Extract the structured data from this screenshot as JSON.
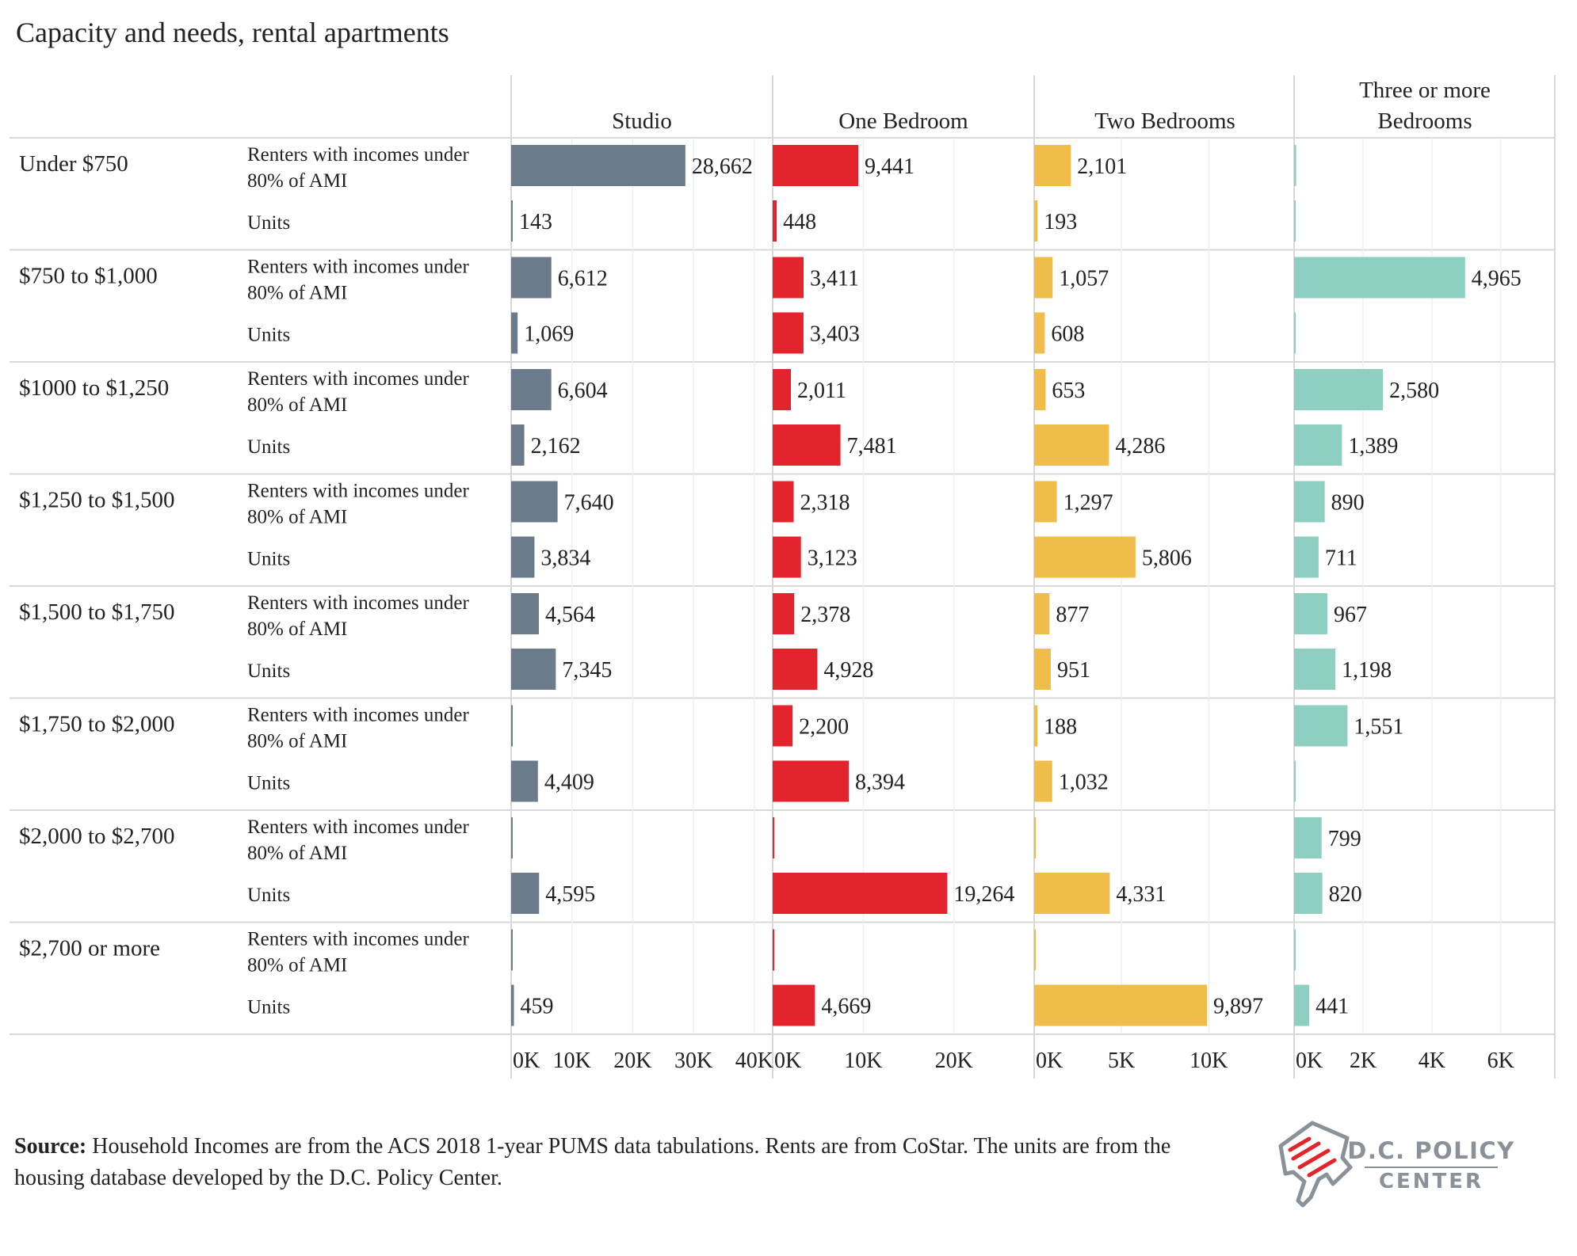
{
  "chart_data": {
    "type": "bar",
    "orientation": "horizontal",
    "title": "Capacity and needs, rental apartments",
    "columns": [
      {
        "label_lines": [
          "Studio"
        ],
        "ticks": [
          0,
          10000,
          20000,
          30000,
          40000
        ],
        "tick_labels": [
          "0K",
          "10K",
          "20K",
          "30K",
          "40K"
        ],
        "xlim": [
          0,
          42500
        ],
        "color": "#6B7B8C"
      },
      {
        "label_lines": [
          "One Bedroom"
        ],
        "ticks": [
          0,
          10000,
          20000
        ],
        "tick_labels": [
          "0K",
          "10K",
          "20K"
        ],
        "xlim": [
          0,
          28500
        ],
        "color": "#E4242C"
      },
      {
        "label_lines": [
          "Two Bedrooms"
        ],
        "ticks": [
          0,
          5000,
          10000
        ],
        "tick_labels": [
          "0K",
          "5K",
          "10K"
        ],
        "xlim": [
          0,
          14800
        ],
        "color": "#F0BC4A"
      },
      {
        "label_lines": [
          "Three or more",
          "Bedrooms"
        ],
        "ticks": [
          0,
          2000,
          4000,
          6000
        ],
        "tick_labels": [
          "0K",
          "2K",
          "4K",
          "6K"
        ],
        "xlim": [
          0,
          7500
        ],
        "color": "#8ECFC2"
      }
    ],
    "measures": [
      {
        "label_lines": [
          "Renters with incomes under",
          "80% of AMI"
        ]
      },
      {
        "label_lines": [
          "Units"
        ]
      }
    ],
    "rent_groups": [
      {
        "label": "Under $750",
        "values": [
          [
            28662,
            143
          ],
          [
            9441,
            448
          ],
          [
            2101,
            193
          ],
          [
            60,
            30
          ]
        ],
        "labels": [
          [
            "28,662",
            "143"
          ],
          [
            "9,441",
            "448"
          ],
          [
            "2,101",
            "193"
          ],
          [
            "",
            ""
          ]
        ]
      },
      {
        "label": "$750 to $1,000",
        "values": [
          [
            6612,
            1069
          ],
          [
            3411,
            3403
          ],
          [
            1057,
            608
          ],
          [
            4965,
            30
          ]
        ],
        "labels": [
          [
            "6,612",
            "1,069"
          ],
          [
            "3,411",
            "3,403"
          ],
          [
            "1,057",
            "608"
          ],
          [
            "4,965",
            ""
          ]
        ]
      },
      {
        "label": "$1000 to $1,250",
        "values": [
          [
            6604,
            2162
          ],
          [
            2011,
            7481
          ],
          [
            653,
            4286
          ],
          [
            2580,
            1389
          ]
        ],
        "labels": [
          [
            "6,604",
            "2,162"
          ],
          [
            "2,011",
            "7,481"
          ],
          [
            "653",
            "4,286"
          ],
          [
            "2,580",
            "1,389"
          ]
        ]
      },
      {
        "label": "$1,250 to $1,500",
        "values": [
          [
            7640,
            3834
          ],
          [
            2318,
            3123
          ],
          [
            1297,
            5806
          ],
          [
            890,
            711
          ]
        ],
        "labels": [
          [
            "7,640",
            "3,834"
          ],
          [
            "2,318",
            "3,123"
          ],
          [
            "1,297",
            "5,806"
          ],
          [
            "890",
            "711"
          ]
        ]
      },
      {
        "label": "$1,500 to $1,750",
        "values": [
          [
            4564,
            7345
          ],
          [
            2378,
            4928
          ],
          [
            877,
            951
          ],
          [
            967,
            1198
          ]
        ],
        "labels": [
          [
            "4,564",
            "7,345"
          ],
          [
            "2,378",
            "4,928"
          ],
          [
            "877",
            "951"
          ],
          [
            "967",
            "1,198"
          ]
        ]
      },
      {
        "label": "$1,750 to $2,000",
        "values": [
          [
            150,
            4409
          ],
          [
            2200,
            8394
          ],
          [
            188,
            1032
          ],
          [
            1551,
            30
          ]
        ],
        "labels": [
          [
            "",
            "4,409"
          ],
          [
            "2,200",
            "8,394"
          ],
          [
            "188",
            "1,032"
          ],
          [
            "1,551",
            ""
          ]
        ]
      },
      {
        "label": "$2,000 to $2,700",
        "values": [
          [
            150,
            4595
          ],
          [
            100,
            19264
          ],
          [
            50,
            4331
          ],
          [
            799,
            820
          ]
        ],
        "labels": [
          [
            "",
            "4,595"
          ],
          [
            "",
            "19,264"
          ],
          [
            "",
            "4,331"
          ],
          [
            "799",
            "820"
          ]
        ]
      },
      {
        "label": "$2,700 or more",
        "values": [
          [
            150,
            459
          ],
          [
            100,
            4669
          ],
          [
            50,
            9897
          ],
          [
            30,
            441
          ]
        ],
        "labels": [
          [
            "",
            "459"
          ],
          [
            "",
            "4,669"
          ],
          [
            "",
            "9,897"
          ],
          [
            "",
            "441"
          ]
        ]
      }
    ]
  },
  "footer": {
    "source_label": "Source:",
    "source_text": " Household Incomes are from the ACS 2018 1-year PUMS data tabulations. Rents are from CoStar. The units are from the housing database developed by the D.C. Policy Center."
  },
  "logo": {
    "line1": "D.C. POLICY",
    "line2": "CENTER",
    "colors": {
      "gray": "#8A9199",
      "red": "#E4242C"
    }
  },
  "style": {
    "grid_color": "#D8D8D8",
    "text_color": "#222222"
  }
}
